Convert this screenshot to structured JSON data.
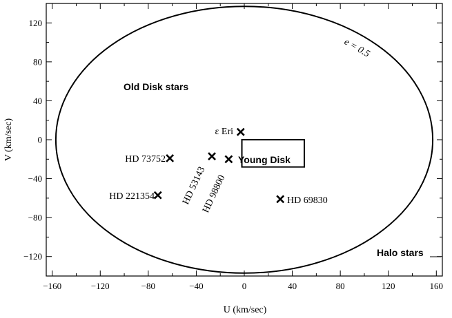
{
  "chart_data": {
    "type": "scatter",
    "xlabel": "U (km/sec)",
    "ylabel": "V (km/sec)",
    "xlim": [
      -165,
      165
    ],
    "ylim": [
      -140,
      140
    ],
    "x_ticks": [
      -160,
      -120,
      -80,
      -40,
      0,
      40,
      80,
      120,
      160
    ],
    "y_ticks": [
      -120,
      -80,
      -40,
      0,
      40,
      80,
      120
    ],
    "x_tick_labels": [
      "−160",
      "−120",
      "−80",
      "−40",
      "0",
      "40",
      "80",
      "120",
      "160"
    ],
    "y_tick_labels": [
      "−120",
      "−80",
      "−40",
      "0",
      "40",
      "80",
      "120"
    ],
    "grid": false,
    "ellipse": {
      "cx": 0,
      "cy": 0,
      "rx": 157,
      "ry": 137,
      "label": "e = 0.5"
    },
    "young_disk_box": {
      "x0": -2,
      "x1": 50,
      "y0": -28,
      "y1": 0,
      "label": "Young Disk"
    },
    "points": [
      {
        "name": "ε Eri",
        "x": -3,
        "y": 8
      },
      {
        "name": "HD 73752",
        "x": -62,
        "y": -19
      },
      {
        "name": "HD 53143",
        "x": -27,
        "y": -17
      },
      {
        "name": "HD 98800",
        "x": -13,
        "y": -20
      },
      {
        "name": "HD 221354",
        "x": -72,
        "y": -57
      },
      {
        "name": "HD 69830",
        "x": 30,
        "y": -61
      }
    ],
    "region_labels": [
      {
        "name": "old-disk",
        "text": "Old Disk stars"
      },
      {
        "name": "halo",
        "text": "Halo stars"
      }
    ]
  }
}
